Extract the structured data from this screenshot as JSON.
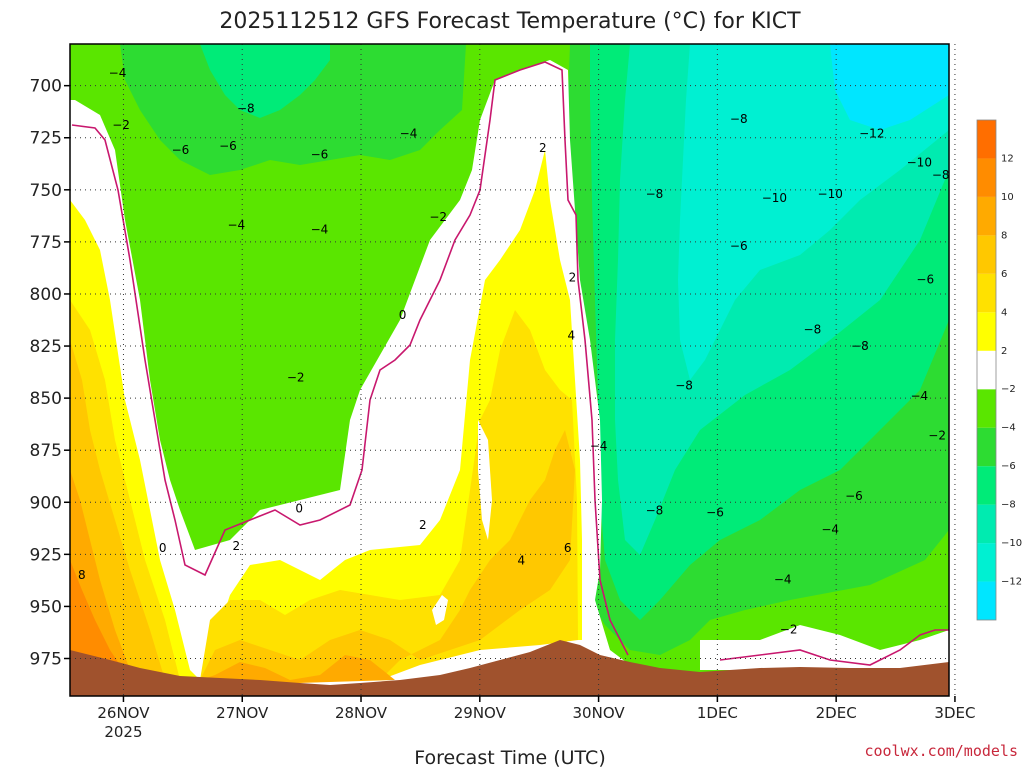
{
  "chart_data": {
    "type": "heatmap",
    "title": "2025112512 GFS Forecast Temperature (°C) for KICT",
    "xlabel": "Forecast Time (UTC)",
    "ylabel": "",
    "x_ticks": [
      "26NOV",
      "27NOV",
      "28NOV",
      "29NOV",
      "30NOV",
      "1DEC",
      "2DEC",
      "3DEC"
    ],
    "x_tick_sub": "2025",
    "x_range_days": [
      -0.45,
      6.95
    ],
    "y_ticks": [
      700,
      725,
      750,
      775,
      800,
      825,
      850,
      875,
      900,
      925,
      950,
      975
    ],
    "y_range": [
      680,
      993
    ],
    "y_scale": "pressure (inverted)",
    "grid": true,
    "colorbar": {
      "levels": [
        -14,
        -12,
        -10,
        -8,
        -6,
        -4,
        -2,
        2,
        4,
        6,
        8,
        10,
        12,
        14
      ],
      "tick_labels": [
        "12",
        "10",
        "8",
        "6",
        "4",
        "2",
        "−2",
        "−4",
        "−6",
        "−8",
        "−10",
        "−12"
      ],
      "colors": [
        "#00e6ff",
        "#00f0d2",
        "#00ebb0",
        "#00eb78",
        "#2ddc32",
        "#5ae600",
        "#ffffff",
        "#ffff00",
        "#ffe100",
        "#ffc800",
        "#ffaa00",
        "#ff8c00",
        "#ff6e00"
      ]
    },
    "contour_labels": [
      {
        "text": "−4",
        "t": -0.05,
        "p": 694
      },
      {
        "text": "−2",
        "t": -0.02,
        "p": 719
      },
      {
        "text": "−6",
        "t": 0.48,
        "p": 731
      },
      {
        "text": "−6",
        "t": 0.88,
        "p": 729
      },
      {
        "text": "−8",
        "t": 1.03,
        "p": 711
      },
      {
        "text": "−6",
        "t": 1.65,
        "p": 733
      },
      {
        "text": "−4",
        "t": 2.4,
        "p": 723
      },
      {
        "text": "−4",
        "t": 0.95,
        "p": 767
      },
      {
        "text": "−4",
        "t": 1.65,
        "p": 769
      },
      {
        "text": "−2",
        "t": 2.65,
        "p": 763
      },
      {
        "text": "−2",
        "t": 1.45,
        "p": 840
      },
      {
        "text": "0",
        "t": 2.35,
        "p": 810
      },
      {
        "text": "0",
        "t": 1.48,
        "p": 903
      },
      {
        "text": "0",
        "t": 0.33,
        "p": 922
      },
      {
        "text": "2",
        "t": 0.95,
        "p": 921
      },
      {
        "text": "2",
        "t": 2.52,
        "p": 911
      },
      {
        "text": "2",
        "t": 3.53,
        "p": 730
      },
      {
        "text": "2",
        "t": 3.78,
        "p": 792
      },
      {
        "text": "4",
        "t": 3.77,
        "p": 820
      },
      {
        "text": "4",
        "t": 3.35,
        "p": 928
      },
      {
        "text": "6",
        "t": 3.74,
        "p": 922
      },
      {
        "text": "8",
        "t": -0.35,
        "p": 935
      },
      {
        "text": "−4",
        "t": 4.0,
        "p": 873
      },
      {
        "text": "−8",
        "t": 4.47,
        "p": 752
      },
      {
        "text": "−8",
        "t": 4.47,
        "p": 904
      },
      {
        "text": "−8",
        "t": 4.72,
        "p": 844
      },
      {
        "text": "−6",
        "t": 4.98,
        "p": 905
      },
      {
        "text": "−8",
        "t": 5.18,
        "p": 716
      },
      {
        "text": "−6",
        "t": 5.18,
        "p": 777
      },
      {
        "text": "−4",
        "t": 5.55,
        "p": 937
      },
      {
        "text": "−10",
        "t": 5.48,
        "p": 754
      },
      {
        "text": "−10",
        "t": 5.95,
        "p": 752
      },
      {
        "text": "−8",
        "t": 5.8,
        "p": 817
      },
      {
        "text": "−8",
        "t": 6.2,
        "p": 825
      },
      {
        "text": "−6",
        "t": 6.15,
        "p": 897
      },
      {
        "text": "−4",
        "t": 5.95,
        "p": 913
      },
      {
        "text": "−2",
        "t": 5.6,
        "p": 961
      },
      {
        "text": "−12",
        "t": 6.3,
        "p": 723
      },
      {
        "text": "−10",
        "t": 6.7,
        "p": 737
      },
      {
        "text": "−8",
        "t": 6.88,
        "p": 743
      },
      {
        "text": "−6",
        "t": 6.75,
        "p": 793
      },
      {
        "text": "−4",
        "t": 6.7,
        "p": 849
      },
      {
        "text": "−2",
        "t": 6.85,
        "p": 868
      }
    ]
  },
  "credit": "coolwx.com/models"
}
